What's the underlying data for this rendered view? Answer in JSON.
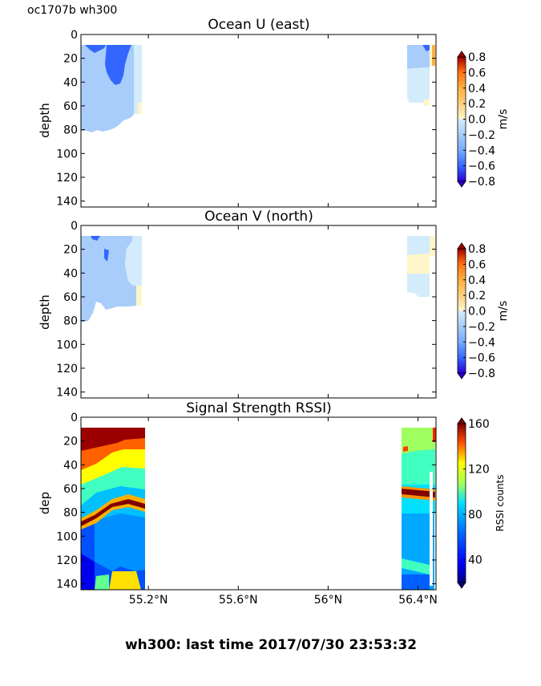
{
  "header": {
    "text": "oc1707b wh300"
  },
  "footer": {
    "text": "wh300: last time 2017/07/30 23:53:32"
  },
  "chart_data": [
    {
      "type": "heatmap",
      "title": "Ocean U (east)",
      "ylabel": "depth",
      "ylim": [
        145,
        0
      ],
      "yticks": [
        0,
        20,
        40,
        60,
        80,
        100,
        120,
        140
      ],
      "xlim": [
        54.9,
        56.48
      ],
      "xticks": [
        55.2,
        55.6,
        56.0,
        56.4
      ],
      "xtick_labels": [
        "",
        "",
        "",
        ""
      ],
      "colorbar": {
        "label": "m/s",
        "range": [
          -0.8,
          0.8
        ],
        "ticks": [
          0.8,
          0.6,
          0.4,
          0.2,
          0.0,
          -0.2,
          -0.4,
          -0.6,
          -0.8
        ],
        "tick_labels": [
          "0.8",
          "0.6",
          "0.4",
          "0.2",
          "0.0",
          "−0.2",
          "−0.4",
          "−0.6",
          "−0.8"
        ],
        "colors": [
          "#2a00d6",
          "#3366ff",
          "#77aaff",
          "#a8cdfa",
          "#d3ecfb",
          "#fef6c8",
          "#ffd080",
          "#ffb040",
          "#ff7010",
          "#e83010",
          "#a00000"
        ]
      },
      "regions": [
        {
          "x": [
            54.9,
            55.19
          ],
          "y": [
            10,
            80
          ],
          "value": -0.25
        },
        {
          "x": [
            54.99,
            55.1
          ],
          "y": [
            10,
            45
          ],
          "value": -0.5
        },
        {
          "x": [
            55.16,
            55.19
          ],
          "y": [
            10,
            67
          ],
          "value": -0.1
        },
        {
          "x": [
            56.28,
            56.38
          ],
          "y": [
            10,
            62
          ],
          "value": -0.25
        },
        {
          "x": [
            56.38,
            56.46
          ],
          "y": [
            10,
            22
          ],
          "value": 0.3
        }
      ]
    },
    {
      "type": "heatmap",
      "title": "Ocean V (north)",
      "ylabel": "depth",
      "ylim": [
        145,
        0
      ],
      "yticks": [
        0,
        20,
        40,
        60,
        80,
        100,
        120,
        140
      ],
      "xlim": [
        54.9,
        56.48
      ],
      "xticks": [
        55.2,
        55.6,
        56.0,
        56.4
      ],
      "xtick_labels": [
        "",
        "",
        "",
        ""
      ],
      "colorbar": {
        "label": "m/s",
        "range": [
          -0.8,
          0.8
        ],
        "ticks": [
          0.8,
          0.6,
          0.4,
          0.2,
          0.0,
          -0.2,
          -0.4,
          -0.6,
          -0.8
        ],
        "tick_labels": [
          "0.8",
          "0.6",
          "0.4",
          "0.2",
          "0.0",
          "−0.2",
          "−0.4",
          "−0.6",
          "−0.8"
        ],
        "colors": [
          "#2a00d6",
          "#3366ff",
          "#77aaff",
          "#a8cdfa",
          "#d3ecfb",
          "#fef6c8",
          "#ffd080",
          "#ffb040",
          "#ff7010",
          "#e83010",
          "#a00000"
        ]
      },
      "regions": [
        {
          "x": [
            54.9,
            55.19
          ],
          "y": [
            10,
            80
          ],
          "value": -0.25
        },
        {
          "x": [
            55.12,
            55.19
          ],
          "y": [
            10,
            67
          ],
          "value": -0.1
        },
        {
          "x": [
            56.28,
            56.38
          ],
          "y": [
            10,
            60
          ],
          "value": -0.1
        },
        {
          "x": [
            56.3,
            56.38
          ],
          "y": [
            25,
            40
          ],
          "value": 0.1
        }
      ]
    },
    {
      "type": "heatmap",
      "title": "Signal Strength RSSI)",
      "ylabel": "dep",
      "ylim": [
        145,
        0
      ],
      "yticks": [
        0,
        20,
        40,
        60,
        80,
        100,
        120,
        140
      ],
      "xlim": [
        54.9,
        56.48
      ],
      "xticks": [
        55.2,
        55.6,
        56.0,
        56.4
      ],
      "xtick_labels": [
        "55.2°N",
        "55.6°N",
        "56°N",
        "56.4°N"
      ],
      "colorbar": {
        "label": "RSSI counts",
        "range": [
          20,
          160
        ],
        "ticks": [
          160,
          120,
          80,
          40
        ],
        "tick_labels": [
          "160",
          "120",
          "80",
          "40"
        ],
        "colors": [
          "#00007f",
          "#0000ff",
          "#0080ff",
          "#00e0ff",
          "#40ffc0",
          "#a0ff60",
          "#ffff00",
          "#ff9000",
          "#ff2000",
          "#7f0000"
        ]
      },
      "regions": [
        {
          "x": [
            54.9,
            55.19
          ],
          "y": [
            10,
            145
          ],
          "value": 50
        },
        {
          "x": [
            56.25,
            56.46
          ],
          "y": [
            10,
            145
          ],
          "value": 60
        }
      ]
    }
  ]
}
